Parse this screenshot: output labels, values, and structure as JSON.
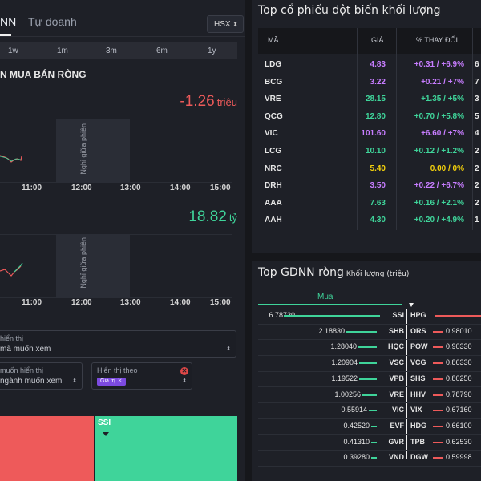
{
  "tabs": [
    "NN",
    "Tự doanh"
  ],
  "exchange": "HSX",
  "ranges": [
    "1w",
    "1m",
    "3m",
    "6m",
    "1y"
  ],
  "section_title": "N MUA BÁN RÒNG",
  "value1": {
    "amount": "-1.26",
    "unit": "triệu"
  },
  "value2": {
    "amount": "18.82",
    "unit": "tỷ"
  },
  "break_label": "Nghỉ giữa phiên",
  "times": [
    "11:00",
    "12:00",
    "13:00",
    "14:00",
    "15:00"
  ],
  "filter1": {
    "label": "hiển thị",
    "value": "mã muốn xem"
  },
  "filter2": {
    "label": "muốn hiển thị",
    "value": "ngành muốn xem"
  },
  "filter3": {
    "label": "Hiển thị theo",
    "tag": "Giá trị"
  },
  "treemap": {
    "label": "SSI"
  },
  "top_vol": {
    "title": "Top cổ phiếu đột biến khối lượng",
    "headers": {
      "symbol": "MÃ",
      "price": "GIÁ",
      "change": "% THAY ĐỔI"
    },
    "rows": [
      {
        "sym": "LDG",
        "price": "4.83",
        "change": "+0.31 / +6.9%",
        "vol": "6",
        "color": "#c77dff"
      },
      {
        "sym": "BCG",
        "price": "3.22",
        "change": "+0.21 / +7%",
        "vol": "7",
        "color": "#c77dff"
      },
      {
        "sym": "VRE",
        "price": "28.15",
        "change": "+1.35 / +5%",
        "vol": "3",
        "color": "#3fd49a"
      },
      {
        "sym": "QCG",
        "price": "12.80",
        "change": "+0.70 / +5.8%",
        "vol": "5",
        "color": "#3fd49a"
      },
      {
        "sym": "VIC",
        "price": "101.60",
        "change": "+6.60 / +7%",
        "vol": "4",
        "color": "#c77dff"
      },
      {
        "sym": "LCG",
        "price": "10.10",
        "change": "+0.12 / +1.2%",
        "vol": "2",
        "color": "#3fd49a"
      },
      {
        "sym": "NRC",
        "price": "5.40",
        "change": "0.00 / 0%",
        "vol": "2",
        "color": "#f5d20c"
      },
      {
        "sym": "DRH",
        "price": "3.50",
        "change": "+0.22 / +6.7%",
        "vol": "2",
        "color": "#c77dff"
      },
      {
        "sym": "AAA",
        "price": "7.63",
        "change": "+0.16 / +2.1%",
        "vol": "2",
        "color": "#3fd49a"
      },
      {
        "sym": "AAH",
        "price": "4.30",
        "change": "+0.20 / +4.9%",
        "vol": "1",
        "color": "#3fd49a"
      }
    ]
  },
  "gdnn": {
    "title": "Top GDNN ròng",
    "subtitle": "Khối lượng (triệu)",
    "buy_label": "Mua",
    "rows": [
      {
        "bv": "6.78720",
        "bs": "SSI",
        "ss": "HPG",
        "sv": "",
        "bw": 1.0,
        "sw": 1.0
      },
      {
        "bv": "2.18830",
        "bs": "SHB",
        "ss": "ORS",
        "sv": "0.98010",
        "bw": 0.32,
        "sw": 0.55
      },
      {
        "bv": "1.28040",
        "bs": "HQC",
        "ss": "POW",
        "sv": "0.90330",
        "bw": 0.19,
        "sw": 0.5
      },
      {
        "bv": "1.20904",
        "bs": "VSC",
        "ss": "VCG",
        "sv": "0.86330",
        "bw": 0.18,
        "sw": 0.48
      },
      {
        "bv": "1.19522",
        "bs": "VPB",
        "ss": "SHS",
        "sv": "0.80250",
        "bw": 0.18,
        "sw": 0.44
      },
      {
        "bv": "1.00256",
        "bs": "VRE",
        "ss": "HHV",
        "sv": "0.78790",
        "bw": 0.15,
        "sw": 0.43
      },
      {
        "bv": "0.55914",
        "bs": "VIC",
        "ss": "VIX",
        "sv": "0.67160",
        "bw": 0.08,
        "sw": 0.37
      },
      {
        "bv": "0.42520",
        "bs": "EVF",
        "ss": "HDG",
        "sv": "0.66100",
        "bw": 0.06,
        "sw": 0.36
      },
      {
        "bv": "0.41310",
        "bs": "GVR",
        "ss": "TPB",
        "sv": "0.62530",
        "bw": 0.06,
        "sw": 0.34
      },
      {
        "bv": "0.39280",
        "bs": "VND",
        "ss": "DGW",
        "sv": "0.59998",
        "bw": 0.06,
        "sw": 0.33
      }
    ]
  },
  "colors": {
    "up": "#3fd49a",
    "down": "#ee5a5a",
    "ceiling": "#c77dff",
    "ref": "#f5d20c"
  }
}
